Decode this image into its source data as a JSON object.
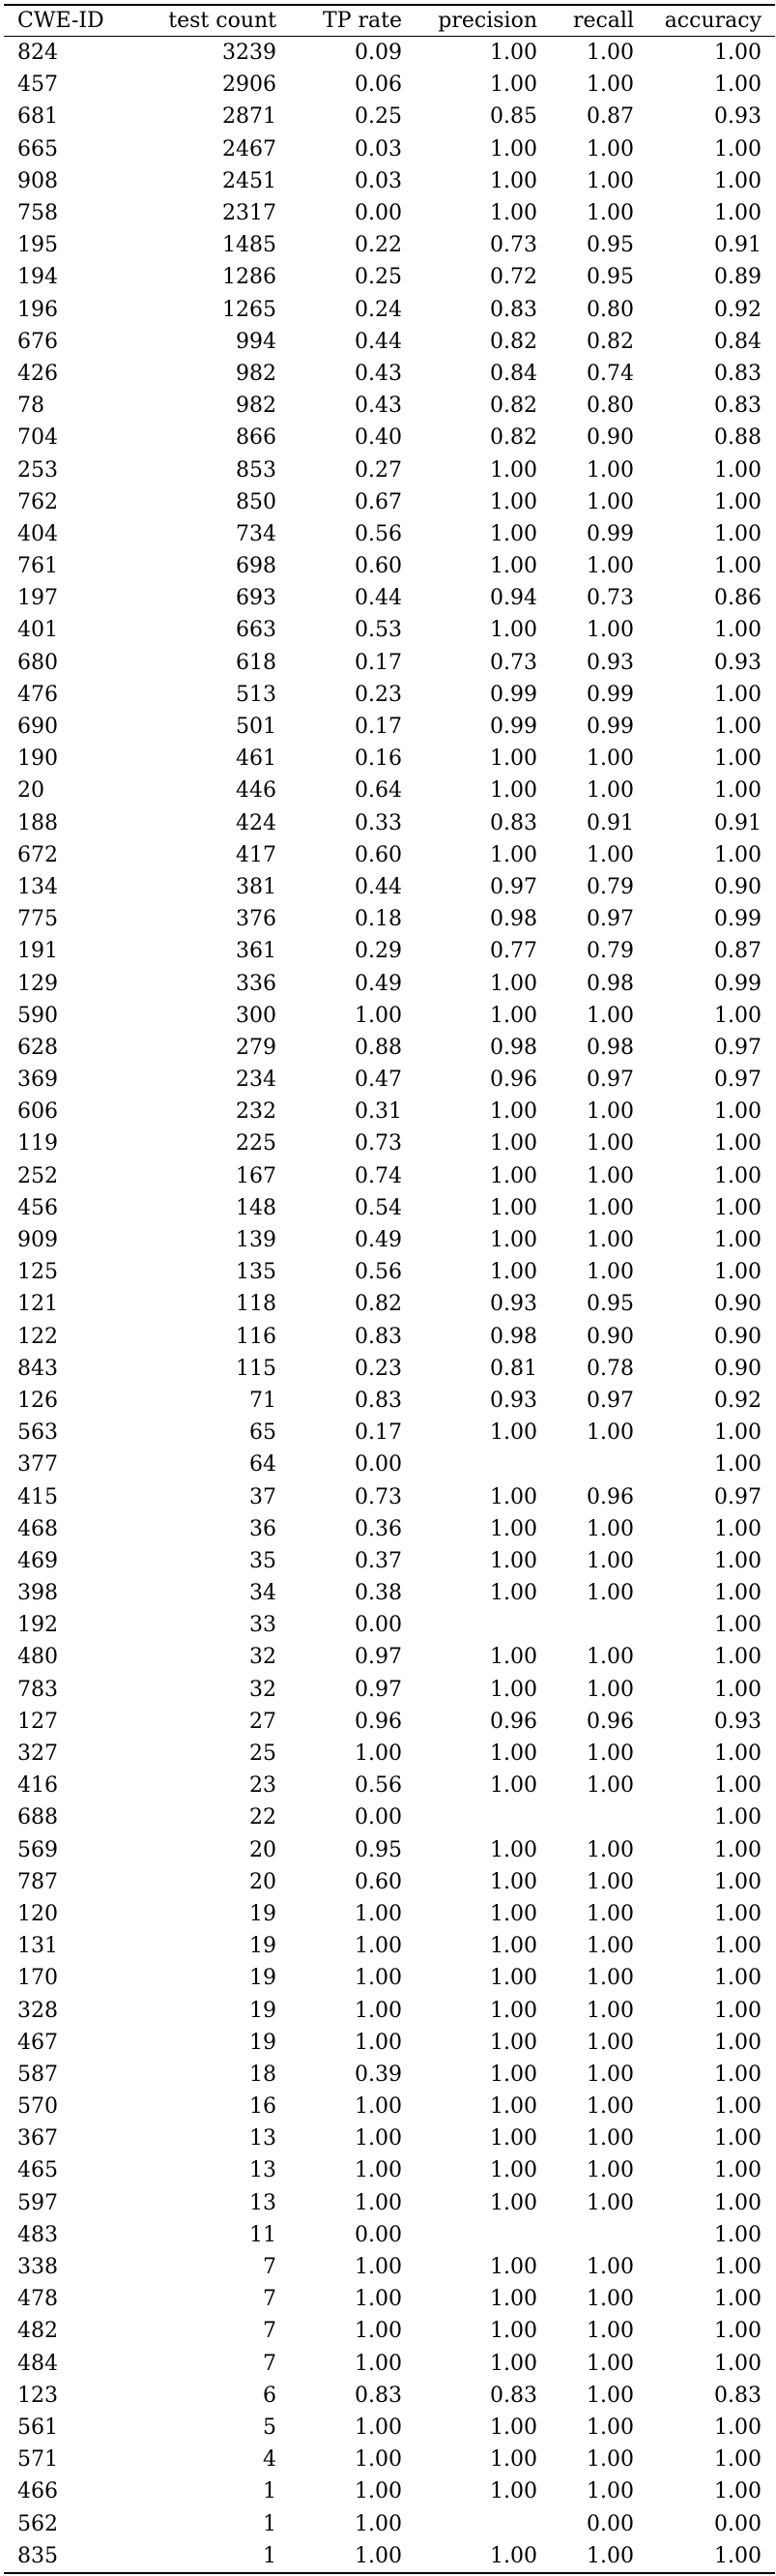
{
  "table": {
    "headers": [
      "CWE-ID",
      "test count",
      "TP rate",
      "precision",
      "recall",
      "accuracy"
    ],
    "rows": [
      [
        "824",
        "3239",
        "0.09",
        "1.00",
        "1.00",
        "1.00"
      ],
      [
        "457",
        "2906",
        "0.06",
        "1.00",
        "1.00",
        "1.00"
      ],
      [
        "681",
        "2871",
        "0.25",
        "0.85",
        "0.87",
        "0.93"
      ],
      [
        "665",
        "2467",
        "0.03",
        "1.00",
        "1.00",
        "1.00"
      ],
      [
        "908",
        "2451",
        "0.03",
        "1.00",
        "1.00",
        "1.00"
      ],
      [
        "758",
        "2317",
        "0.00",
        "1.00",
        "1.00",
        "1.00"
      ],
      [
        "195",
        "1485",
        "0.22",
        "0.73",
        "0.95",
        "0.91"
      ],
      [
        "194",
        "1286",
        "0.25",
        "0.72",
        "0.95",
        "0.89"
      ],
      [
        "196",
        "1265",
        "0.24",
        "0.83",
        "0.80",
        "0.92"
      ],
      [
        "676",
        "994",
        "0.44",
        "0.82",
        "0.82",
        "0.84"
      ],
      [
        "426",
        "982",
        "0.43",
        "0.84",
        "0.74",
        "0.83"
      ],
      [
        "78",
        "982",
        "0.43",
        "0.82",
        "0.80",
        "0.83"
      ],
      [
        "704",
        "866",
        "0.40",
        "0.82",
        "0.90",
        "0.88"
      ],
      [
        "253",
        "853",
        "0.27",
        "1.00",
        "1.00",
        "1.00"
      ],
      [
        "762",
        "850",
        "0.67",
        "1.00",
        "1.00",
        "1.00"
      ],
      [
        "404",
        "734",
        "0.56",
        "1.00",
        "0.99",
        "1.00"
      ],
      [
        "761",
        "698",
        "0.60",
        "1.00",
        "1.00",
        "1.00"
      ],
      [
        "197",
        "693",
        "0.44",
        "0.94",
        "0.73",
        "0.86"
      ],
      [
        "401",
        "663",
        "0.53",
        "1.00",
        "1.00",
        "1.00"
      ],
      [
        "680",
        "618",
        "0.17",
        "0.73",
        "0.93",
        "0.93"
      ],
      [
        "476",
        "513",
        "0.23",
        "0.99",
        "0.99",
        "1.00"
      ],
      [
        "690",
        "501",
        "0.17",
        "0.99",
        "0.99",
        "1.00"
      ],
      [
        "190",
        "461",
        "0.16",
        "1.00",
        "1.00",
        "1.00"
      ],
      [
        "20",
        "446",
        "0.64",
        "1.00",
        "1.00",
        "1.00"
      ],
      [
        "188",
        "424",
        "0.33",
        "0.83",
        "0.91",
        "0.91"
      ],
      [
        "672",
        "417",
        "0.60",
        "1.00",
        "1.00",
        "1.00"
      ],
      [
        "134",
        "381",
        "0.44",
        "0.97",
        "0.79",
        "0.90"
      ],
      [
        "775",
        "376",
        "0.18",
        "0.98",
        "0.97",
        "0.99"
      ],
      [
        "191",
        "361",
        "0.29",
        "0.77",
        "0.79",
        "0.87"
      ],
      [
        "129",
        "336",
        "0.49",
        "1.00",
        "0.98",
        "0.99"
      ],
      [
        "590",
        "300",
        "1.00",
        "1.00",
        "1.00",
        "1.00"
      ],
      [
        "628",
        "279",
        "0.88",
        "0.98",
        "0.98",
        "0.97"
      ],
      [
        "369",
        "234",
        "0.47",
        "0.96",
        "0.97",
        "0.97"
      ],
      [
        "606",
        "232",
        "0.31",
        "1.00",
        "1.00",
        "1.00"
      ],
      [
        "119",
        "225",
        "0.73",
        "1.00",
        "1.00",
        "1.00"
      ],
      [
        "252",
        "167",
        "0.74",
        "1.00",
        "1.00",
        "1.00"
      ],
      [
        "456",
        "148",
        "0.54",
        "1.00",
        "1.00",
        "1.00"
      ],
      [
        "909",
        "139",
        "0.49",
        "1.00",
        "1.00",
        "1.00"
      ],
      [
        "125",
        "135",
        "0.56",
        "1.00",
        "1.00",
        "1.00"
      ],
      [
        "121",
        "118",
        "0.82",
        "0.93",
        "0.95",
        "0.90"
      ],
      [
        "122",
        "116",
        "0.83",
        "0.98",
        "0.90",
        "0.90"
      ],
      [
        "843",
        "115",
        "0.23",
        "0.81",
        "0.78",
        "0.90"
      ],
      [
        "126",
        "71",
        "0.83",
        "0.93",
        "0.97",
        "0.92"
      ],
      [
        "563",
        "65",
        "0.17",
        "1.00",
        "1.00",
        "1.00"
      ],
      [
        "377",
        "64",
        "0.00",
        "",
        "",
        "1.00"
      ],
      [
        "415",
        "37",
        "0.73",
        "1.00",
        "0.96",
        "0.97"
      ],
      [
        "468",
        "36",
        "0.36",
        "1.00",
        "1.00",
        "1.00"
      ],
      [
        "469",
        "35",
        "0.37",
        "1.00",
        "1.00",
        "1.00"
      ],
      [
        "398",
        "34",
        "0.38",
        "1.00",
        "1.00",
        "1.00"
      ],
      [
        "192",
        "33",
        "0.00",
        "",
        "",
        "1.00"
      ],
      [
        "480",
        "32",
        "0.97",
        "1.00",
        "1.00",
        "1.00"
      ],
      [
        "783",
        "32",
        "0.97",
        "1.00",
        "1.00",
        "1.00"
      ],
      [
        "127",
        "27",
        "0.96",
        "0.96",
        "0.96",
        "0.93"
      ],
      [
        "327",
        "25",
        "1.00",
        "1.00",
        "1.00",
        "1.00"
      ],
      [
        "416",
        "23",
        "0.56",
        "1.00",
        "1.00",
        "1.00"
      ],
      [
        "688",
        "22",
        "0.00",
        "",
        "",
        "1.00"
      ],
      [
        "569",
        "20",
        "0.95",
        "1.00",
        "1.00",
        "1.00"
      ],
      [
        "787",
        "20",
        "0.60",
        "1.00",
        "1.00",
        "1.00"
      ],
      [
        "120",
        "19",
        "1.00",
        "1.00",
        "1.00",
        "1.00"
      ],
      [
        "131",
        "19",
        "1.00",
        "1.00",
        "1.00",
        "1.00"
      ],
      [
        "170",
        "19",
        "1.00",
        "1.00",
        "1.00",
        "1.00"
      ],
      [
        "328",
        "19",
        "1.00",
        "1.00",
        "1.00",
        "1.00"
      ],
      [
        "467",
        "19",
        "1.00",
        "1.00",
        "1.00",
        "1.00"
      ],
      [
        "587",
        "18",
        "0.39",
        "1.00",
        "1.00",
        "1.00"
      ],
      [
        "570",
        "16",
        "1.00",
        "1.00",
        "1.00",
        "1.00"
      ],
      [
        "367",
        "13",
        "1.00",
        "1.00",
        "1.00",
        "1.00"
      ],
      [
        "465",
        "13",
        "1.00",
        "1.00",
        "1.00",
        "1.00"
      ],
      [
        "597",
        "13",
        "1.00",
        "1.00",
        "1.00",
        "1.00"
      ],
      [
        "483",
        "11",
        "0.00",
        "",
        "",
        "1.00"
      ],
      [
        "338",
        "7",
        "1.00",
        "1.00",
        "1.00",
        "1.00"
      ],
      [
        "478",
        "7",
        "1.00",
        "1.00",
        "1.00",
        "1.00"
      ],
      [
        "482",
        "7",
        "1.00",
        "1.00",
        "1.00",
        "1.00"
      ],
      [
        "484",
        "7",
        "1.00",
        "1.00",
        "1.00",
        "1.00"
      ],
      [
        "123",
        "6",
        "0.83",
        "0.83",
        "1.00",
        "0.83"
      ],
      [
        "561",
        "5",
        "1.00",
        "1.00",
        "1.00",
        "1.00"
      ],
      [
        "571",
        "4",
        "1.00",
        "1.00",
        "1.00",
        "1.00"
      ],
      [
        "466",
        "1",
        "1.00",
        "1.00",
        "1.00",
        "1.00"
      ],
      [
        "562",
        "1",
        "1.00",
        "",
        "0.00",
        "0.00"
      ],
      [
        "835",
        "1",
        "1.00",
        "1.00",
        "1.00",
        "1.00"
      ]
    ]
  }
}
